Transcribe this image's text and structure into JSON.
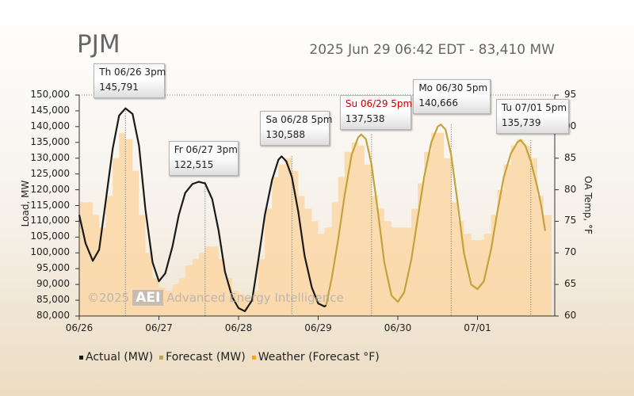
{
  "title": "PJM",
  "subtitle": "2025 Jun 29 06:42 EDT - 83,410 MW",
  "watermark": {
    "prefix": "©2025",
    "badge": "AEI",
    "text": "Advanced Energy Intelligence"
  },
  "colors": {
    "actual": "#1a1a1a",
    "forecast": "#c2a33c",
    "weather": "#fbd7a6",
    "callout_forecast_label": "#cc0000"
  },
  "chart_data": {
    "type": "line",
    "ylabel": "Load, MW",
    "y2label": "OA Temp, °F",
    "ylim": [
      80000,
      150000
    ],
    "y2lim": [
      60,
      95
    ],
    "y_ticks": [
      "150,000",
      "145,000",
      "140,000",
      "135,000",
      "130,000",
      "125,000",
      "120,000",
      "115,000",
      "110,000",
      "105,000",
      "100,000",
      "95,000",
      "90,000",
      "85,000",
      "80,000"
    ],
    "y2_ticks": [
      "95",
      "90",
      "85",
      "80",
      "75",
      "70",
      "65",
      "60"
    ],
    "x_ticks": [
      {
        "label": "06/26",
        "day": 0
      },
      {
        "label": "06/27",
        "day": 1
      },
      {
        "label": "06/28",
        "day": 2
      },
      {
        "label": "06/29",
        "day": 3
      },
      {
        "label": "06/30",
        "day": 4
      },
      {
        "label": "07/01",
        "day": 5
      }
    ],
    "x_range_days": [
      0,
      5.93
    ],
    "legend": {
      "placement": "bottom-left",
      "items": [
        {
          "label": "Actual (MW)",
          "color": "#1a1a1a"
        },
        {
          "label": "Forecast (MW)",
          "color": "#c2a33c"
        },
        {
          "label": "Weather (Forecast °F)",
          "color": "#f5a623"
        }
      ]
    },
    "series": [
      {
        "name": "Actual (MW)",
        "kind": "actual",
        "points": [
          [
            0.0,
            112000
          ],
          [
            0.08,
            103000
          ],
          [
            0.17,
            97500
          ],
          [
            0.25,
            101000
          ],
          [
            0.33,
            116000
          ],
          [
            0.42,
            133000
          ],
          [
            0.5,
            143500
          ],
          [
            0.58,
            145791
          ],
          [
            0.67,
            144000
          ],
          [
            0.75,
            134000
          ],
          [
            0.83,
            114000
          ],
          [
            0.92,
            97000
          ],
          [
            1.0,
            91000
          ],
          [
            1.08,
            93500
          ],
          [
            1.17,
            102000
          ],
          [
            1.25,
            112000
          ],
          [
            1.33,
            119000
          ],
          [
            1.42,
            121800
          ],
          [
            1.5,
            122515
          ],
          [
            1.58,
            122000
          ],
          [
            1.67,
            117000
          ],
          [
            1.75,
            107000
          ],
          [
            1.83,
            94000
          ],
          [
            1.92,
            86000
          ],
          [
            2.0,
            82500
          ],
          [
            2.08,
            81500
          ],
          [
            2.17,
            85000
          ],
          [
            2.25,
            98000
          ],
          [
            2.33,
            112000
          ],
          [
            2.42,
            123000
          ],
          [
            2.5,
            129500
          ],
          [
            2.54,
            130588
          ],
          [
            2.6,
            129000
          ],
          [
            2.67,
            124000
          ],
          [
            2.75,
            113000
          ],
          [
            2.83,
            99000
          ],
          [
            2.92,
            89000
          ],
          [
            3.0,
            84000
          ],
          [
            3.08,
            83000
          ],
          [
            3.1,
            83410
          ]
        ]
      },
      {
        "name": "Forecast (MW)",
        "kind": "forecast",
        "points": [
          [
            3.1,
            83410
          ],
          [
            3.17,
            92000
          ],
          [
            3.25,
            104000
          ],
          [
            3.33,
            118000
          ],
          [
            3.42,
            131000
          ],
          [
            3.5,
            136500
          ],
          [
            3.54,
            137538
          ],
          [
            3.6,
            136000
          ],
          [
            3.67,
            128000
          ],
          [
            3.75,
            113000
          ],
          [
            3.83,
            97000
          ],
          [
            3.92,
            86500
          ],
          [
            4.0,
            84500
          ],
          [
            4.08,
            87500
          ],
          [
            4.17,
            98000
          ],
          [
            4.25,
            111000
          ],
          [
            4.33,
            124000
          ],
          [
            4.42,
            135000
          ],
          [
            4.5,
            140000
          ],
          [
            4.54,
            140666
          ],
          [
            4.6,
            139000
          ],
          [
            4.67,
            131000
          ],
          [
            4.75,
            116000
          ],
          [
            4.83,
            100000
          ],
          [
            4.92,
            90000
          ],
          [
            5.0,
            88500
          ],
          [
            5.08,
            91000
          ],
          [
            5.17,
            101000
          ],
          [
            5.25,
            113000
          ],
          [
            5.33,
            124000
          ],
          [
            5.42,
            131500
          ],
          [
            5.5,
            135000
          ],
          [
            5.54,
            135739
          ],
          [
            5.6,
            134000
          ],
          [
            5.67,
            129000
          ],
          [
            5.75,
            121000
          ],
          [
            5.8,
            115000
          ],
          [
            5.85,
            107000
          ]
        ]
      },
      {
        "name": "Weather (Forecast °F)",
        "kind": "weather",
        "points": [
          [
            0.0,
            78
          ],
          [
            0.08,
            78
          ],
          [
            0.17,
            76
          ],
          [
            0.25,
            74
          ],
          [
            0.33,
            79
          ],
          [
            0.42,
            85
          ],
          [
            0.5,
            89
          ],
          [
            0.58,
            88
          ],
          [
            0.67,
            83
          ],
          [
            0.75,
            76
          ],
          [
            0.83,
            70
          ],
          [
            0.92,
            66
          ],
          [
            1.0,
            64.5
          ],
          [
            1.08,
            64
          ],
          [
            1.17,
            65
          ],
          [
            1.25,
            66
          ],
          [
            1.33,
            68
          ],
          [
            1.42,
            69
          ],
          [
            1.5,
            70
          ],
          [
            1.58,
            71
          ],
          [
            1.67,
            71
          ],
          [
            1.75,
            69
          ],
          [
            1.83,
            66
          ],
          [
            1.92,
            64
          ],
          [
            2.0,
            63.5
          ],
          [
            2.08,
            63
          ],
          [
            2.17,
            64
          ],
          [
            2.25,
            69
          ],
          [
            2.33,
            77
          ],
          [
            2.42,
            82
          ],
          [
            2.5,
            84
          ],
          [
            2.58,
            85
          ],
          [
            2.67,
            83
          ],
          [
            2.75,
            79
          ],
          [
            2.83,
            77
          ],
          [
            2.92,
            75
          ],
          [
            3.0,
            73
          ],
          [
            3.08,
            74
          ],
          [
            3.17,
            78
          ],
          [
            3.25,
            82
          ],
          [
            3.33,
            86
          ],
          [
            3.42,
            87.5
          ],
          [
            3.5,
            87
          ],
          [
            3.58,
            84
          ],
          [
            3.67,
            79
          ],
          [
            3.75,
            77
          ],
          [
            3.83,
            75
          ],
          [
            3.92,
            74
          ],
          [
            4.0,
            74
          ],
          [
            4.08,
            74
          ],
          [
            4.17,
            77
          ],
          [
            4.25,
            81
          ],
          [
            4.33,
            86
          ],
          [
            4.42,
            89
          ],
          [
            4.5,
            89
          ],
          [
            4.58,
            85
          ],
          [
            4.67,
            78
          ],
          [
            4.75,
            75
          ],
          [
            4.83,
            73
          ],
          [
            4.92,
            72
          ],
          [
            5.0,
            72
          ],
          [
            5.08,
            73
          ],
          [
            5.17,
            76
          ],
          [
            5.25,
            80
          ],
          [
            5.33,
            84
          ],
          [
            5.42,
            87
          ],
          [
            5.5,
            88
          ],
          [
            5.58,
            87
          ],
          [
            5.67,
            85
          ],
          [
            5.75,
            79
          ],
          [
            5.83,
            76
          ],
          [
            5.93,
            74
          ]
        ]
      }
    ],
    "annotations": [
      {
        "label": "Th 06/26 3pm",
        "value": "145,791",
        "day": 0.58,
        "mw": 145791,
        "forecast": false
      },
      {
        "label": "Fr 06/27 3pm",
        "value": "122,515",
        "day": 1.58,
        "mw": 122515,
        "forecast": false
      },
      {
        "label": "Sa 06/28 5pm",
        "value": "130,588",
        "day": 2.67,
        "mw": 130588,
        "forecast": false
      },
      {
        "label": "Su 06/29 5pm",
        "value": "137,538",
        "day": 3.67,
        "mw": 137538,
        "forecast": true
      },
      {
        "label": "Mo 06/30 5pm",
        "value": "140,666",
        "day": 4.67,
        "mw": 140666,
        "forecast": false
      },
      {
        "label": "Tu 07/01 5pm",
        "value": "135,739",
        "day": 5.67,
        "mw": 135739,
        "forecast": false
      }
    ]
  }
}
